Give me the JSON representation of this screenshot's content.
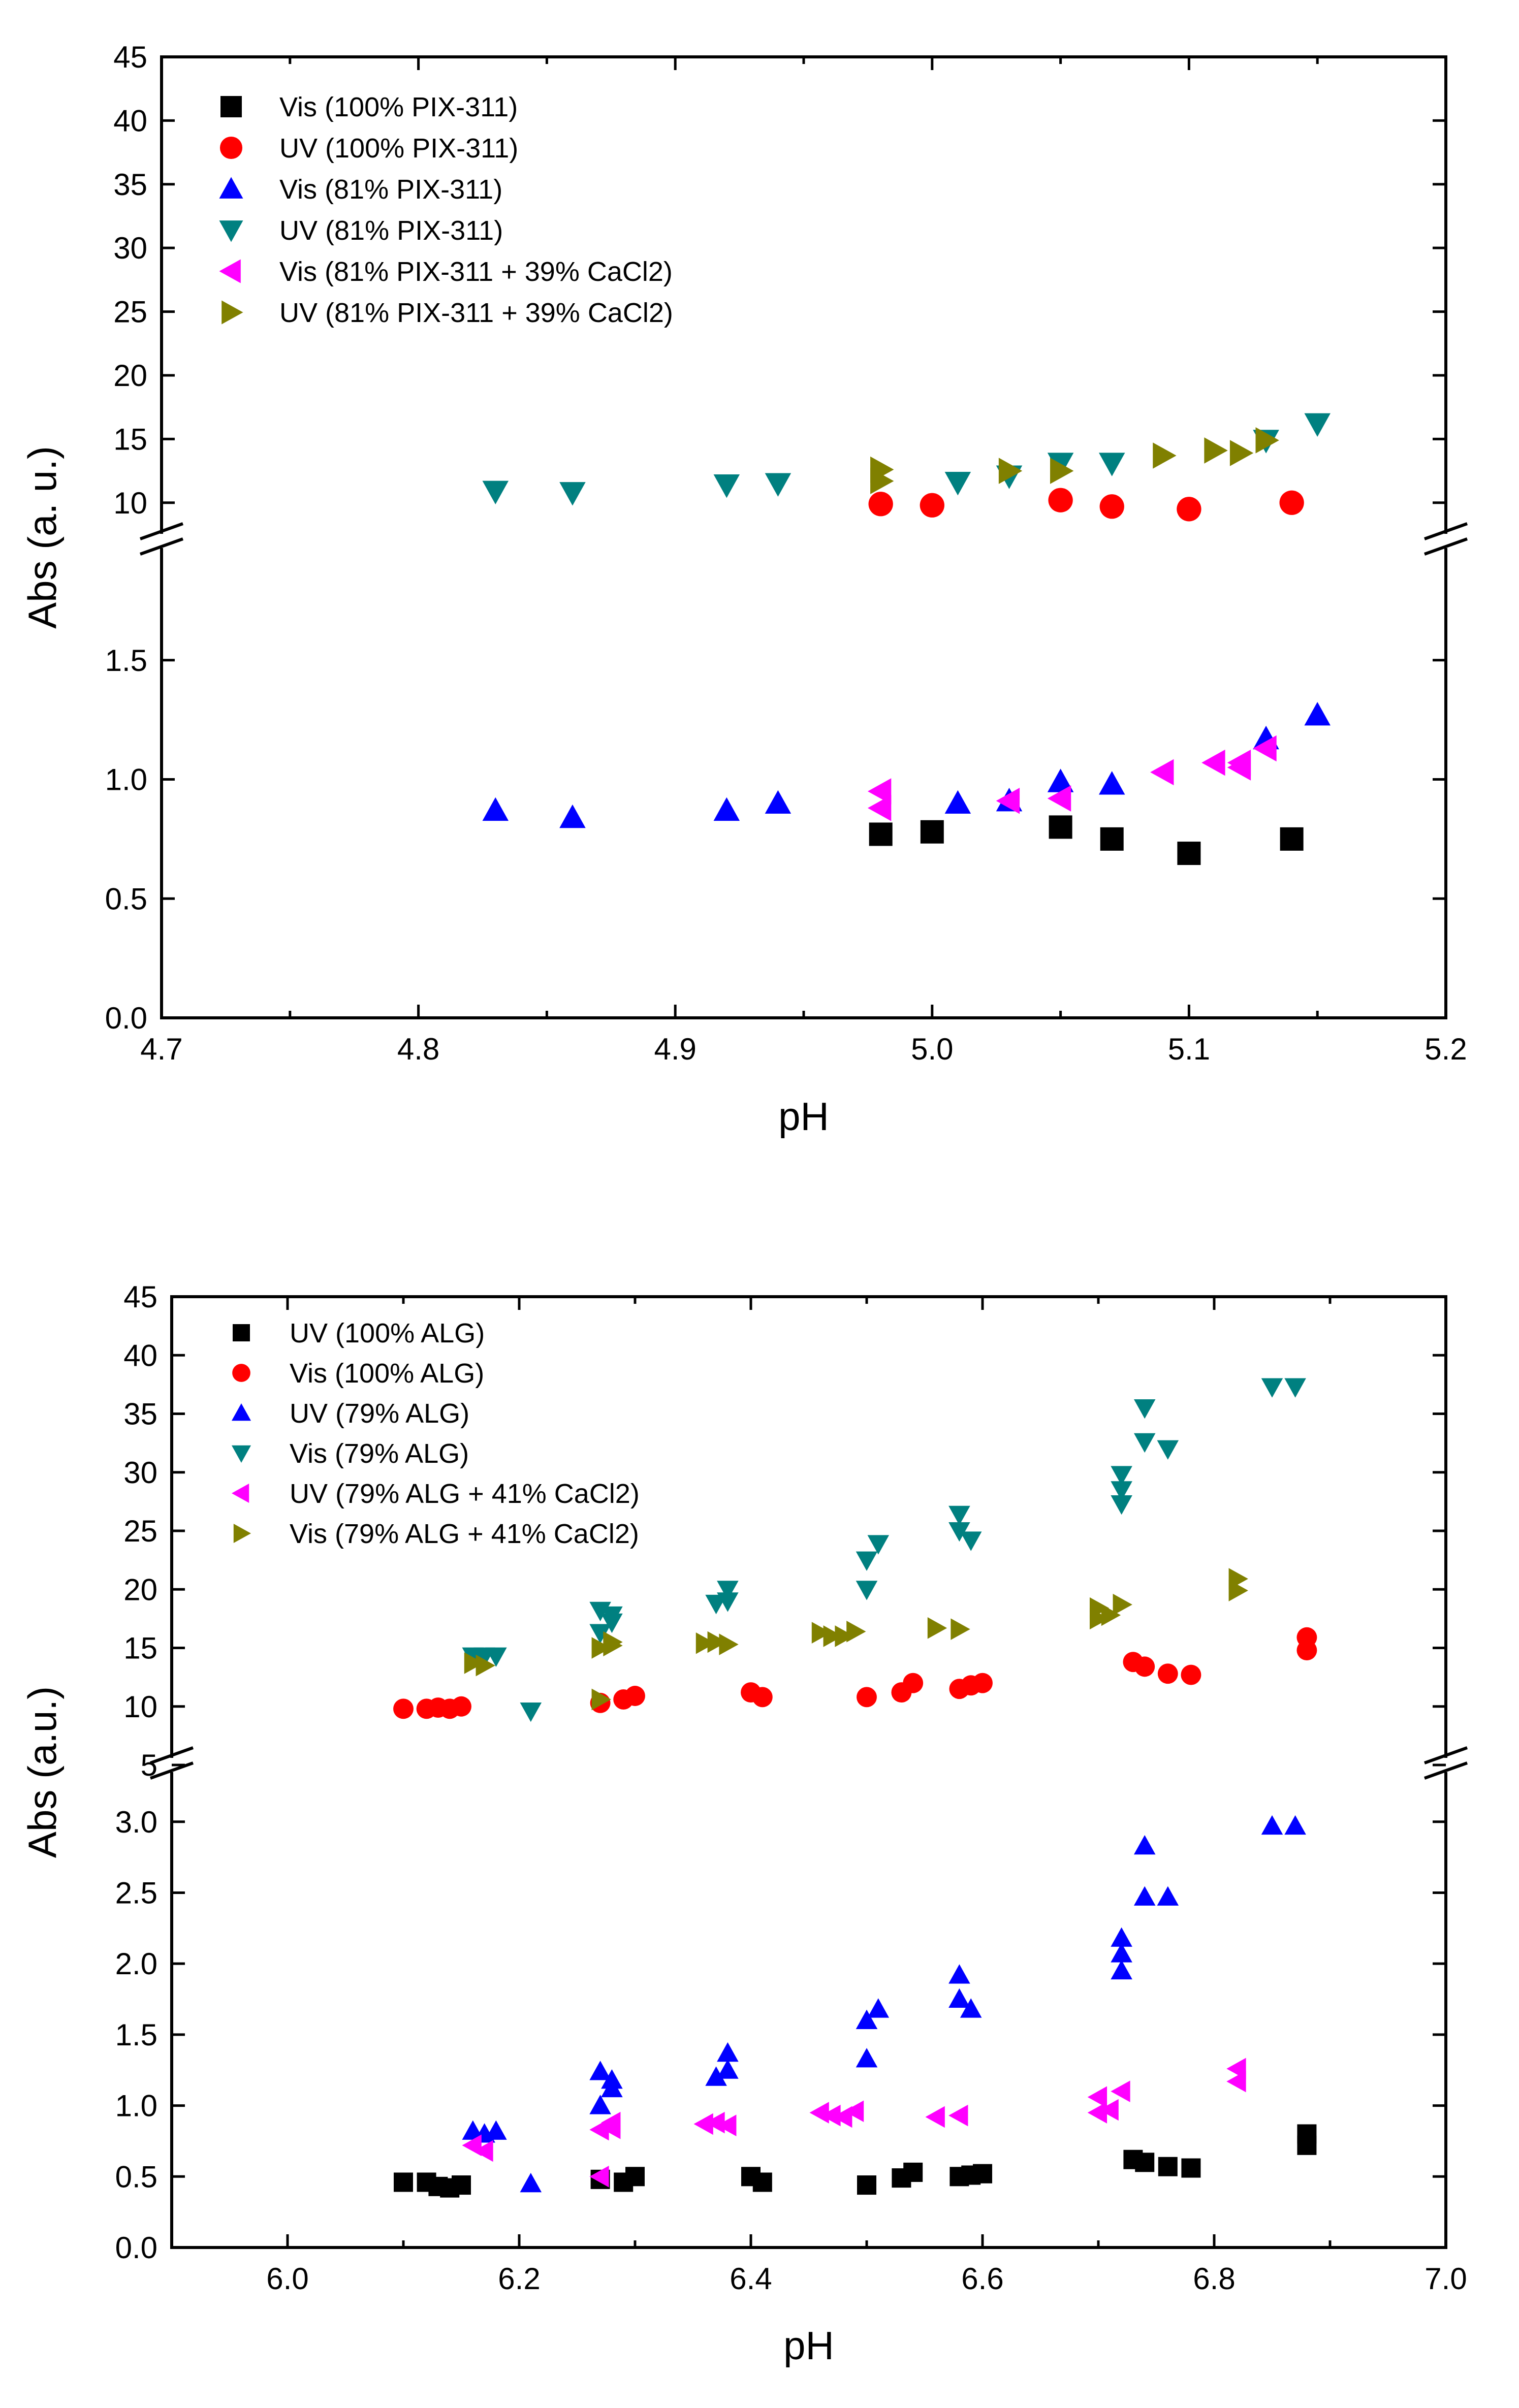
{
  "colors": {
    "black": "#000000",
    "red": "#ff0000",
    "blue": "#0000ff",
    "teal": "#008080",
    "magenta": "#ff00ff",
    "olive": "#808000"
  },
  "chart_data": [
    {
      "type": "scatter",
      "xlabel": "pH",
      "ylabel": "Abs (a. u.)",
      "xlim": [
        4.7,
        5.2
      ],
      "xticks": [
        4.7,
        4.8,
        4.9,
        5.0,
        5.1,
        5.2
      ],
      "xtick_labels": [
        "4.7",
        "4.8",
        "4.9",
        "5.0",
        "5.1",
        "5.2"
      ],
      "axis_break": true,
      "lower_ylim": [
        0,
        2.0
      ],
      "lower_yticks": [
        "0.0",
        "0.5",
        "1.0",
        "1.5"
      ],
      "upper_ylim": [
        7,
        45
      ],
      "upper_yticks": [
        "10",
        "15",
        "20",
        "25",
        "30",
        "35",
        "40",
        "45"
      ],
      "legend_position": "top-left",
      "series": [
        {
          "name": "Vis (100% PIX-311)",
          "marker": "square",
          "color": "#000000",
          "panel": "lower",
          "points": [
            [
              4.98,
              0.77
            ],
            [
              5.0,
              0.78
            ],
            [
              5.05,
              0.8
            ],
            [
              5.07,
              0.75
            ],
            [
              5.1,
              0.69
            ],
            [
              5.14,
              0.75
            ]
          ]
        },
        {
          "name": "UV  (100% PIX-311)",
          "marker": "circle",
          "color": "#ff0000",
          "panel": "upper",
          "points": [
            [
              4.98,
              9.9
            ],
            [
              5.0,
              9.8
            ],
            [
              5.05,
              10.2
            ],
            [
              5.07,
              9.7
            ],
            [
              5.1,
              9.5
            ],
            [
              5.14,
              10.0
            ]
          ]
        },
        {
          "name": "Vis (81% PIX-311)",
          "marker": "triangle-up",
          "color": "#0000ff",
          "panel": "lower",
          "points": [
            [
              4.83,
              0.87
            ],
            [
              4.86,
              0.84
            ],
            [
              4.92,
              0.87
            ],
            [
              4.94,
              0.9
            ],
            [
              5.01,
              0.9
            ],
            [
              5.03,
              0.91
            ],
            [
              5.05,
              0.99
            ],
            [
              5.07,
              0.98
            ],
            [
              5.13,
              1.17
            ],
            [
              5.15,
              1.27
            ]
          ]
        },
        {
          "name": "UV  (81% PIX-311)",
          "marker": "triangle-down",
          "color": "#008080",
          "panel": "upper",
          "points": [
            [
              4.83,
              10.9
            ],
            [
              4.86,
              10.8
            ],
            [
              4.92,
              11.4
            ],
            [
              4.94,
              11.5
            ],
            [
              5.01,
              11.6
            ],
            [
              5.03,
              12.1
            ],
            [
              5.05,
              13.1
            ],
            [
              5.07,
              13.1
            ],
            [
              5.13,
              14.9
            ],
            [
              5.15,
              16.2
            ]
          ]
        },
        {
          "name": "Vis (81% PIX-311 + 39% CaCl2)",
          "marker": "triangle-left",
          "color": "#ff00ff",
          "panel": "lower",
          "points": [
            [
              4.98,
              0.95
            ],
            [
              4.98,
              0.88
            ],
            [
              5.03,
              0.91
            ],
            [
              5.05,
              0.92
            ],
            [
              5.09,
              1.03
            ],
            [
              5.11,
              1.07
            ],
            [
              5.12,
              1.05
            ],
            [
              5.12,
              1.07
            ],
            [
              5.13,
              1.13
            ]
          ]
        },
        {
          "name": "UV  (81% PIX-311 + 39% CaCl2)",
          "marker": "triangle-right",
          "color": "#808000",
          "panel": "upper",
          "points": [
            [
              4.98,
              12.6
            ],
            [
              4.98,
              11.7
            ],
            [
              5.03,
              12.5
            ],
            [
              5.05,
              12.5
            ],
            [
              5.09,
              13.7
            ],
            [
              5.11,
              14.1
            ],
            [
              5.12,
              13.9
            ],
            [
              5.13,
              14.9
            ]
          ]
        }
      ]
    },
    {
      "type": "scatter",
      "xlabel": "pH",
      "ylabel": "Abs (a.u.)",
      "xlim": [
        5.9,
        7.0
      ],
      "xticks": [
        6.0,
        6.2,
        6.4,
        6.6,
        6.8,
        7.0
      ],
      "xtick_labels": [
        "6.0",
        "6.2",
        "6.4",
        "6.6",
        "6.8",
        "7.0"
      ],
      "axis_break": true,
      "lower_ylim": [
        0,
        3.4
      ],
      "lower_yticks": [
        "0.0",
        "0.5",
        "1.0",
        "1.5",
        "2.0",
        "2.5",
        "3.0"
      ],
      "upper_ylim": [
        5,
        45
      ],
      "upper_yticks": [
        "5",
        "10",
        "15",
        "20",
        "25",
        "30",
        "35",
        "40",
        "45"
      ],
      "legend_position": "top-left",
      "series": [
        {
          "name": "UV  (100% ALG)",
          "marker": "square",
          "color": "#000000",
          "panel": "lower",
          "points": [
            [
              6.1,
              0.46
            ],
            [
              6.12,
              0.46
            ],
            [
              6.13,
              0.43
            ],
            [
              6.14,
              0.42
            ],
            [
              6.15,
              0.44
            ],
            [
              6.27,
              0.48
            ],
            [
              6.29,
              0.46
            ],
            [
              6.3,
              0.5
            ],
            [
              6.4,
              0.5
            ],
            [
              6.41,
              0.46
            ],
            [
              6.5,
              0.44
            ],
            [
              6.53,
              0.49
            ],
            [
              6.54,
              0.53
            ],
            [
              6.58,
              0.5
            ],
            [
              6.59,
              0.51
            ],
            [
              6.6,
              0.52
            ],
            [
              6.73,
              0.62
            ],
            [
              6.74,
              0.6
            ],
            [
              6.76,
              0.57
            ],
            [
              6.78,
              0.56
            ],
            [
              6.88,
              0.72
            ],
            [
              6.88,
              0.8
            ]
          ]
        },
        {
          "name": "Vis (100% ALG)",
          "marker": "circle",
          "color": "#ff0000",
          "panel": "upper",
          "points": [
            [
              6.1,
              9.8
            ],
            [
              6.12,
              9.8
            ],
            [
              6.13,
              9.9
            ],
            [
              6.14,
              9.8
            ],
            [
              6.15,
              10.0
            ],
            [
              6.27,
              10.3
            ],
            [
              6.29,
              10.6
            ],
            [
              6.3,
              10.9
            ],
            [
              6.4,
              11.2
            ],
            [
              6.41,
              10.8
            ],
            [
              6.5,
              10.8
            ],
            [
              6.53,
              11.2
            ],
            [
              6.54,
              12.0
            ],
            [
              6.58,
              11.5
            ],
            [
              6.59,
              11.8
            ],
            [
              6.6,
              12.0
            ],
            [
              6.73,
              13.8
            ],
            [
              6.74,
              13.4
            ],
            [
              6.76,
              12.8
            ],
            [
              6.78,
              12.7
            ],
            [
              6.88,
              14.8
            ],
            [
              6.88,
              15.9
            ]
          ]
        },
        {
          "name": "UV  (79% ALG)",
          "marker": "triangle-up",
          "color": "#0000ff",
          "panel": "lower",
          "points": [
            [
              6.16,
              0.82
            ],
            [
              6.17,
              0.8
            ],
            [
              6.18,
              0.82
            ],
            [
              6.21,
              0.45
            ],
            [
              6.27,
              1.0
            ],
            [
              6.27,
              1.24
            ],
            [
              6.28,
              1.18
            ],
            [
              6.28,
              1.12
            ],
            [
              6.37,
              1.2
            ],
            [
              6.38,
              1.25
            ],
            [
              6.38,
              1.37
            ],
            [
              6.5,
              1.33
            ],
            [
              6.5,
              1.6
            ],
            [
              6.51,
              1.68
            ],
            [
              6.58,
              1.92
            ],
            [
              6.58,
              1.75
            ],
            [
              6.59,
              1.68
            ],
            [
              6.72,
              1.95
            ],
            [
              6.72,
              2.07
            ],
            [
              6.72,
              2.18
            ],
            [
              6.74,
              2.47
            ],
            [
              6.74,
              2.83
            ],
            [
              6.76,
              2.47
            ],
            [
              6.85,
              2.97
            ],
            [
              6.87,
              2.97
            ]
          ]
        },
        {
          "name": "Vis (79% ALG)",
          "marker": "triangle-down",
          "color": "#008080",
          "panel": "upper",
          "points": [
            [
              6.16,
              14.3
            ],
            [
              6.17,
              14.3
            ],
            [
              6.18,
              14.3
            ],
            [
              6.21,
              9.6
            ],
            [
              6.27,
              18.2
            ],
            [
              6.27,
              16.3
            ],
            [
              6.28,
              17.8
            ],
            [
              6.28,
              17.2
            ],
            [
              6.37,
              18.8
            ],
            [
              6.38,
              20.0
            ],
            [
              6.38,
              19.0
            ],
            [
              6.5,
              22.5
            ],
            [
              6.5,
              20.0
            ],
            [
              6.51,
              23.9
            ],
            [
              6.58,
              26.4
            ],
            [
              6.58,
              25.0
            ],
            [
              6.59,
              24.2
            ],
            [
              6.72,
              27.3
            ],
            [
              6.72,
              28.5
            ],
            [
              6.72,
              29.8
            ],
            [
              6.74,
              32.6
            ],
            [
              6.74,
              35.5
            ],
            [
              6.76,
              32.0
            ],
            [
              6.85,
              37.3
            ],
            [
              6.87,
              37.3
            ]
          ]
        },
        {
          "name": "UV  (79% ALG + 41% CaCl2)",
          "marker": "triangle-left",
          "color": "#ff00ff",
          "panel": "lower",
          "points": [
            [
              6.16,
              0.72
            ],
            [
              6.17,
              0.68
            ],
            [
              6.27,
              0.5
            ],
            [
              6.27,
              0.83
            ],
            [
              6.28,
              0.88
            ],
            [
              6.28,
              0.84
            ],
            [
              6.36,
              0.87
            ],
            [
              6.37,
              0.88
            ],
            [
              6.38,
              0.86
            ],
            [
              6.46,
              0.95
            ],
            [
              6.47,
              0.93
            ],
            [
              6.48,
              0.92
            ],
            [
              6.49,
              0.96
            ],
            [
              6.56,
              0.92
            ],
            [
              6.58,
              0.93
            ],
            [
              6.7,
              0.95
            ],
            [
              6.7,
              1.06
            ],
            [
              6.71,
              0.97
            ],
            [
              6.72,
              1.1
            ],
            [
              6.82,
              1.17
            ],
            [
              6.82,
              1.26
            ]
          ]
        },
        {
          "name": "Vis (79% ALG + 41% CaCl2)",
          "marker": "triangle-right",
          "color": "#808000",
          "panel": "upper",
          "points": [
            [
              6.16,
              13.7
            ],
            [
              6.17,
              13.5
            ],
            [
              6.27,
              10.6
            ],
            [
              6.27,
              15.0
            ],
            [
              6.28,
              15.5
            ],
            [
              6.28,
              15.2
            ],
            [
              6.36,
              15.4
            ],
            [
              6.37,
              15.5
            ],
            [
              6.38,
              15.3
            ],
            [
              6.46,
              16.3
            ],
            [
              6.47,
              16.0
            ],
            [
              6.48,
              16.0
            ],
            [
              6.49,
              16.4
            ],
            [
              6.56,
              16.7
            ],
            [
              6.58,
              16.6
            ],
            [
              6.7,
              17.5
            ],
            [
              6.7,
              18.4
            ],
            [
              6.71,
              17.8
            ],
            [
              6.72,
              18.7
            ],
            [
              6.82,
              19.9
            ],
            [
              6.82,
              20.9
            ]
          ]
        }
      ]
    }
  ]
}
